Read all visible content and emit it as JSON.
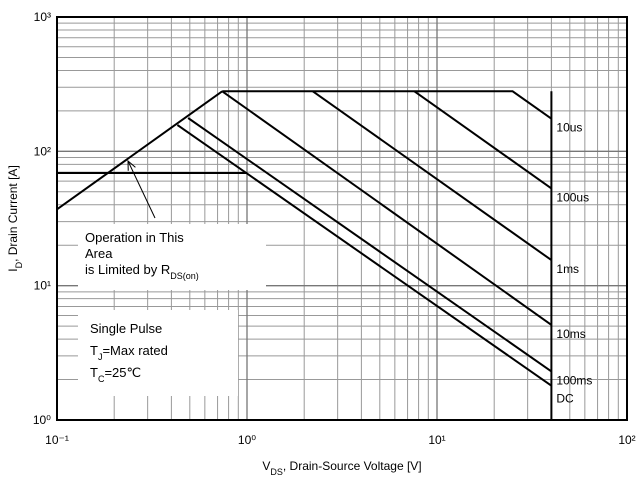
{
  "chart_data": {
    "type": "line",
    "xlabel": [
      "V",
      "DS",
      ", Drain-Source Voltage [V]"
    ],
    "ylabel": [
      "I",
      "D",
      ", Drain Current [A]"
    ],
    "xscale": "log",
    "yscale": "log",
    "xlim": [
      0.1,
      100
    ],
    "ylim": [
      1,
      1000
    ],
    "xticks": [
      {
        "value": 0.1,
        "label": "10⁻¹"
      },
      {
        "value": 1,
        "label": "10⁰"
      },
      {
        "value": 10,
        "label": "10¹"
      },
      {
        "value": 100,
        "label": "10²"
      }
    ],
    "yticks": [
      {
        "value": 1,
        "label": "10⁰"
      },
      {
        "value": 10,
        "label": "10¹"
      },
      {
        "value": 100,
        "label": "10²"
      },
      {
        "value": 1000,
        "label": "10³"
      }
    ],
    "grid": true,
    "series": [
      {
        "name": "10us",
        "color": "#000000",
        "x": [
          0.74,
          25,
          40
        ],
        "values": [
          280,
          280,
          175
        ]
      },
      {
        "name": "100us",
        "color": "#000000",
        "x": [
          7.6,
          40
        ],
        "values": [
          280,
          53
        ]
      },
      {
        "name": "1ms",
        "color": "#000000",
        "x": [
          2.22,
          40
        ],
        "values": [
          280,
          15.5
        ]
      },
      {
        "name": "10ms",
        "color": "#000000",
        "x": [
          0.74,
          40
        ],
        "values": [
          280,
          5.1
        ]
      },
      {
        "name": "100ms",
        "color": "#000000",
        "x": [
          0.49,
          40
        ],
        "values": [
          177,
          2.3
        ]
      },
      {
        "name": "DC",
        "color": "#000000",
        "x": [
          0.43,
          40
        ],
        "values": [
          157,
          1.8
        ]
      }
    ],
    "limit_lines": [
      {
        "color": "#000000",
        "x": [
          0.1,
          0.74
        ],
        "values": [
          37,
          280
        ]
      },
      {
        "color": "#000000",
        "x": [
          40,
          40
        ],
        "values": [
          280,
          1
        ]
      },
      {
        "color": "#000000",
        "x": [
          0.1,
          1
        ],
        "values": [
          69,
          69
        ]
      }
    ],
    "annotations": [
      {
        "lines": [
          [
            "Operation in This"
          ],
          [
            "Area"
          ],
          [
            "is Limited by R",
            "DS(on)"
          ]
        ]
      },
      {
        "lines": [
          [
            "Single Pulse"
          ],
          [
            "T",
            "J",
            "=Max rated"
          ],
          [
            "T",
            "C",
            "=25℃"
          ]
        ]
      }
    ]
  }
}
